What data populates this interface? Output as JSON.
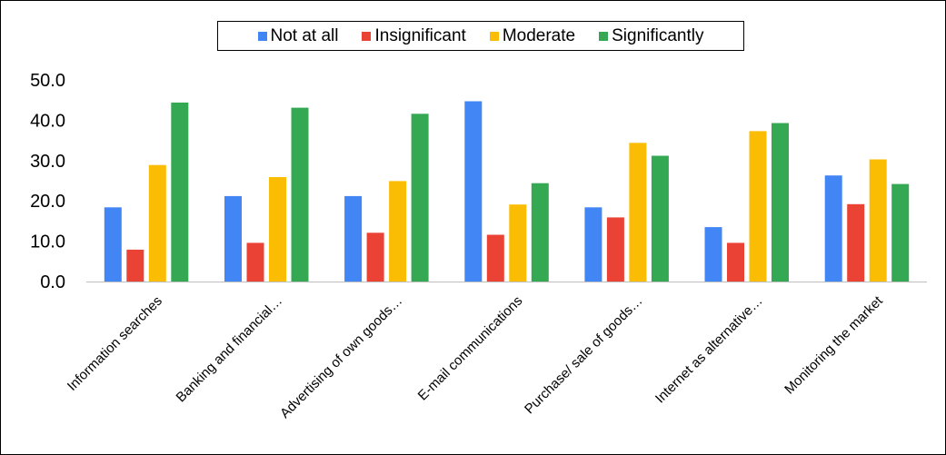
{
  "chart_data": {
    "type": "bar",
    "categories": [
      "Information searches",
      "Banking and financial…",
      "Advertising of own goods…",
      "E-mail communications",
      "Purchase/ sale of goods…",
      "Internet as alternative…",
      "Monitoring the market"
    ],
    "series": [
      {
        "name": "Not at all",
        "color": "#4285F4",
        "values": [
          18.4,
          21.2,
          21.2,
          44.7,
          18.4,
          13.5,
          26.3
        ]
      },
      {
        "name": "Insignificant",
        "color": "#EA4335",
        "values": [
          7.9,
          9.6,
          12.1,
          11.6,
          15.9,
          9.6,
          19.2
        ]
      },
      {
        "name": "Moderate",
        "color": "#FBBC04",
        "values": [
          28.9,
          25.9,
          24.9,
          19.1,
          34.4,
          37.3,
          30.3
        ]
      },
      {
        "name": "Significantly",
        "color": "#34A853",
        "values": [
          44.4,
          43.1,
          41.6,
          24.4,
          31.2,
          39.3,
          24.2
        ]
      }
    ],
    "yticks": [
      "0.0",
      "10.0",
      "20.0",
      "30.0",
      "40.0",
      "50.0"
    ],
    "ylim": [
      0,
      50
    ],
    "title": "",
    "xlabel": "",
    "ylabel": "",
    "legend_position": "top-center",
    "grid": false
  }
}
